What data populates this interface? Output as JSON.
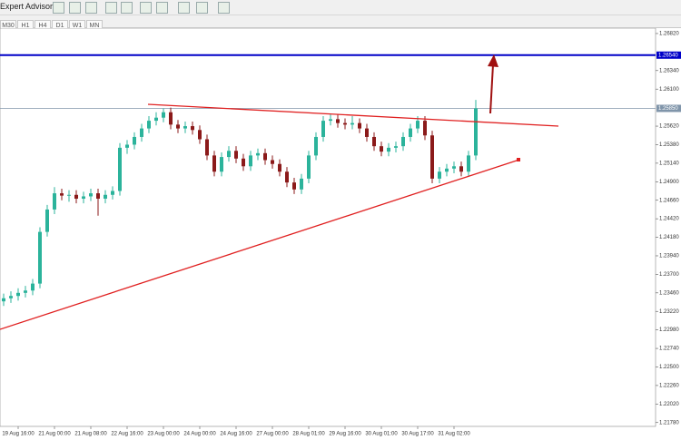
{
  "toolbar": {
    "label": "Expert Advisors",
    "timeframes": [
      "M30",
      "H1",
      "H4",
      "D1",
      "W1",
      "MN"
    ]
  },
  "chart_data": {
    "type": "candlestick",
    "categories": [
      null,
      null,
      "19 Aug 16:00",
      null,
      null,
      null,
      null,
      "21 Aug 00:00",
      null,
      null,
      null,
      null,
      "21 Aug 08:00",
      null,
      null,
      null,
      null,
      "22 Aug 16:00",
      null,
      null,
      null,
      null,
      "23 Aug 00:00",
      null,
      null,
      null,
      null,
      "24 Aug 00:00",
      null,
      null,
      null,
      null,
      "24 Aug 16:00",
      null,
      null,
      null,
      null,
      "27 Aug 00:00",
      null,
      null,
      null,
      null,
      "28 Aug 01:00",
      null,
      null,
      null,
      null,
      "29 Aug 16:00",
      null,
      null,
      null,
      null,
      "30 Aug 01:00",
      null,
      null,
      null,
      null,
      "30 Aug 17:00",
      null,
      null,
      null,
      null,
      "31 Aug 02:00",
      null,
      null,
      null
    ],
    "open": [
      1.2335,
      1.2339,
      1.2342,
      1.2346,
      1.2349,
      1.2358,
      1.2425,
      1.2454,
      1.2475,
      1.2472,
      1.2473,
      1.2468,
      1.2471,
      1.2475,
      1.2468,
      1.2473,
      1.2478,
      1.2534,
      1.2538,
      1.2548,
      1.2559,
      1.2569,
      1.2573,
      1.258,
      1.2564,
      1.2559,
      1.2562,
      1.2557,
      1.2545,
      1.2524,
      1.2503,
      1.2522,
      1.253,
      1.252,
      1.251,
      1.2524,
      1.2527,
      1.2518,
      1.2513,
      1.2503,
      1.2489,
      1.248,
      1.2494,
      1.2524,
      1.2548,
      1.2569,
      1.2571,
      1.2566,
      1.2564,
      1.2566,
      1.2559,
      1.2548,
      1.2536,
      1.2529,
      1.2534,
      1.2536,
      1.2548,
      1.2559,
      1.2569,
      1.255,
      1.2494,
      1.2503,
      1.2507,
      1.251,
      1.2503,
      1.2524
    ],
    "high": [
      1.2345,
      1.2348,
      1.2352,
      1.2355,
      1.2364,
      1.2431,
      1.246,
      1.2483,
      1.2481,
      1.2479,
      1.2479,
      1.2477,
      1.2481,
      1.2481,
      1.2479,
      1.2484,
      1.254,
      1.2544,
      1.2554,
      1.2565,
      1.2575,
      1.258,
      1.2585,
      1.2586,
      1.257,
      1.2568,
      1.2568,
      1.2563,
      1.2551,
      1.253,
      1.2528,
      1.2536,
      1.2536,
      1.2526,
      1.253,
      1.2533,
      1.2533,
      1.2524,
      1.2519,
      1.2509,
      1.2495,
      1.25,
      1.253,
      1.2554,
      1.2575,
      1.2577,
      1.2577,
      1.2572,
      1.2575,
      1.2572,
      1.2565,
      1.2554,
      1.2542,
      1.254,
      1.2542,
      1.2554,
      1.2565,
      1.2575,
      1.2575,
      1.2556,
      1.2509,
      1.2513,
      1.2516,
      1.2516,
      1.253,
      1.2596
    ],
    "low": [
      1.2329,
      1.2333,
      1.2336,
      1.234,
      1.2343,
      1.2352,
      1.2419,
      1.2448,
      1.2466,
      1.2464,
      1.2462,
      1.2462,
      1.2465,
      1.2446,
      1.2462,
      1.2467,
      1.2472,
      1.2526,
      1.2532,
      1.2542,
      1.2553,
      1.2563,
      1.2567,
      1.2558,
      1.2553,
      1.2553,
      1.2551,
      1.2539,
      1.2518,
      1.2497,
      1.2497,
      1.2516,
      1.2514,
      1.2504,
      1.2504,
      1.2518,
      1.2512,
      1.2507,
      1.2497,
      1.2483,
      1.2474,
      1.2474,
      1.2488,
      1.2518,
      1.2542,
      1.2563,
      1.256,
      1.2558,
      1.2558,
      1.2553,
      1.2542,
      1.253,
      1.2523,
      1.2523,
      1.2528,
      1.253,
      1.2542,
      1.2553,
      1.2544,
      1.2488,
      1.2488,
      1.2497,
      1.2501,
      1.2497,
      1.2497,
      1.2518
    ],
    "close": [
      1.2339,
      1.2342,
      1.2346,
      1.2349,
      1.2358,
      1.2425,
      1.2454,
      1.2475,
      1.2472,
      1.2473,
      1.2468,
      1.2471,
      1.2475,
      1.2468,
      1.2473,
      1.2478,
      1.2534,
      1.2538,
      1.2548,
      1.2559,
      1.2569,
      1.2573,
      1.258,
      1.2564,
      1.2559,
      1.2562,
      1.2557,
      1.2545,
      1.2524,
      1.2503,
      1.2522,
      1.253,
      1.252,
      1.251,
      1.2524,
      1.2527,
      1.2518,
      1.2513,
      1.2503,
      1.2489,
      1.248,
      1.2494,
      1.2524,
      1.2548,
      1.2569,
      1.2571,
      1.2566,
      1.2564,
      1.2566,
      1.2559,
      1.2548,
      1.2536,
      1.2529,
      1.2534,
      1.2536,
      1.2548,
      1.2559,
      1.2569,
      1.255,
      1.2494,
      1.2503,
      1.2507,
      1.251,
      1.2503,
      1.2524,
      1.2585
    ],
    "up_color": "#2bb39b",
    "down_color": "#8b1a1a",
    "ylim": [
      1.2173,
      1.2689
    ],
    "yticks": [
      {
        "value": 1.2178,
        "label": "1.21780"
      },
      {
        "value": 1.2202,
        "label": "1.22020"
      },
      {
        "value": 1.2226,
        "label": "1.22260"
      },
      {
        "value": 1.225,
        "label": "1.22500"
      },
      {
        "value": 1.2274,
        "label": "1.22740"
      },
      {
        "value": 1.2298,
        "label": "1.22980"
      },
      {
        "value": 1.2322,
        "label": "1.23220"
      },
      {
        "value": 1.2346,
        "label": "1.23460"
      },
      {
        "value": 1.237,
        "label": "1.23700"
      },
      {
        "value": 1.2394,
        "label": "1.23940"
      },
      {
        "value": 1.2418,
        "label": "1.24180"
      },
      {
        "value": 1.2442,
        "label": "1.24420"
      },
      {
        "value": 1.2466,
        "label": "1.24660"
      },
      {
        "value": 1.249,
        "label": "1.24900"
      },
      {
        "value": 1.2514,
        "label": "1.25140"
      },
      {
        "value": 1.2538,
        "label": "1.25380"
      },
      {
        "value": 1.2562,
        "label": "1.25620"
      },
      {
        "value": 1.261,
        "label": "1.26100"
      },
      {
        "value": 1.2634,
        "label": "1.26340"
      },
      {
        "value": 1.2682,
        "label": "1.26820"
      }
    ],
    "hlines": [
      {
        "value": 1.2654,
        "label": "1.26540",
        "color": "#0000c8"
      },
      {
        "value": 1.2585,
        "label": "1.25850",
        "color": "#8095aa"
      }
    ],
    "grid": false
  }
}
